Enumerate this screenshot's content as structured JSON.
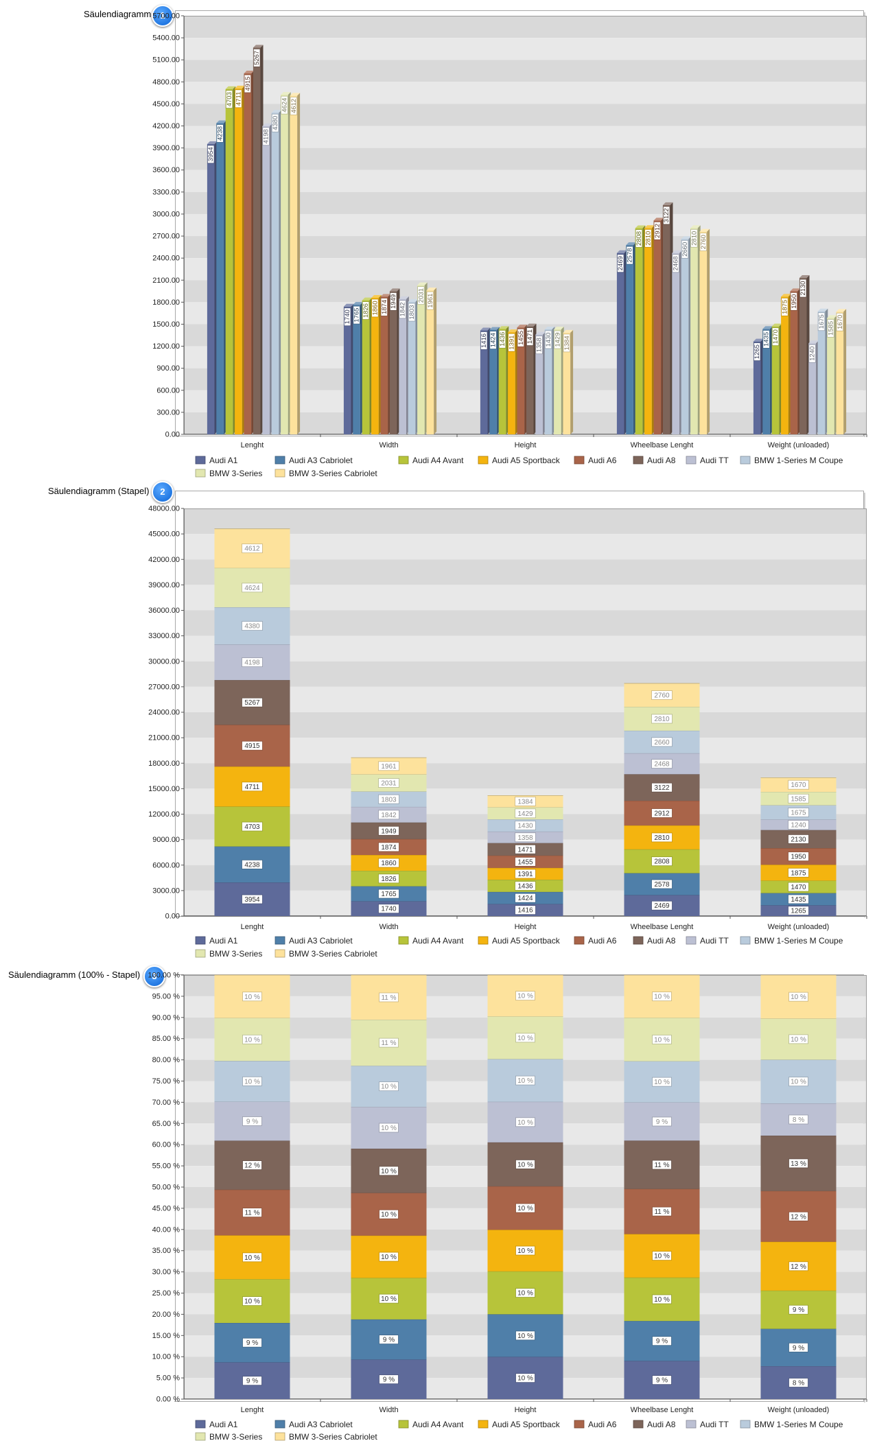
{
  "annotations": [
    {
      "label": "Säulendiagramm",
      "badge": "1"
    },
    {
      "label": "Säulendiagramm (Stapel)",
      "badge": "2"
    },
    {
      "label": "Säulendiagramm (100% - Stapel)",
      "badge": "3"
    }
  ],
  "colors": [
    "#5e6a9a",
    "#4f7fa9",
    "#b7c43a",
    "#f4b40f",
    "#a96449",
    "#7d655a",
    "#bcc0d3",
    "#b9cbdc",
    "#e2e7b0",
    "#fde29c"
  ],
  "chart_data": [
    {
      "type": "bar",
      "title": "Säulendiagramm",
      "categories": [
        "Lenght",
        "Width",
        "Height",
        "Wheelbase Lenght",
        "Weight (unloaded)"
      ],
      "ylim": [
        0,
        5700
      ],
      "ytick_step": 300,
      "ytick_labels": [
        "0.00",
        "300.00",
        "600.00",
        "900.00",
        "1200.00",
        "1500.00",
        "1800.00",
        "2100.00",
        "2400.00",
        "2700.00",
        "3000.00",
        "3300.00",
        "3600.00",
        "3900.00",
        "4200.00",
        "4500.00",
        "4800.00",
        "5100.00",
        "5400.00",
        "5700.00"
      ],
      "series": [
        {
          "name": "Audi A1",
          "values": [
            3954,
            1740,
            1416,
            2469,
            1265
          ]
        },
        {
          "name": "Audi A3 Cabriolet",
          "values": [
            4238,
            1765,
            1424,
            2578,
            1435
          ]
        },
        {
          "name": "Audi A4 Avant",
          "values": [
            4703,
            1826,
            1436,
            2808,
            1470
          ]
        },
        {
          "name": "Audi A5 Sportback",
          "values": [
            4711,
            1860,
            1391,
            2810,
            1875
          ]
        },
        {
          "name": "Audi A6",
          "values": [
            4915,
            1874,
            1455,
            2912,
            1950
          ]
        },
        {
          "name": "Audi A8",
          "values": [
            5267,
            1949,
            1471,
            3122,
            2130
          ]
        },
        {
          "name": "Audi TT",
          "values": [
            4198,
            1842,
            1358,
            2468,
            1240
          ]
        },
        {
          "name": "BMW 1-Series M Coupe",
          "values": [
            4380,
            1803,
            1430,
            2660,
            1675
          ]
        },
        {
          "name": "BMW 3-Series",
          "values": [
            4624,
            2031,
            1429,
            2810,
            1585
          ]
        },
        {
          "name": "BMW 3-Series Cabriolet",
          "values": [
            4612,
            1961,
            1384,
            2760,
            1670
          ]
        }
      ]
    },
    {
      "type": "bar",
      "title": "Säulendiagramm (Stapel)",
      "categories": [
        "Lenght",
        "Width",
        "Height",
        "Wheelbase Lenght",
        "Weight (unloaded)"
      ],
      "ylim": [
        0,
        48000
      ],
      "ytick_step": 3000,
      "ytick_labels": [
        "0.00",
        "3000.00",
        "6000.00",
        "9000.00",
        "12000.00",
        "15000.00",
        "18000.00",
        "21000.00",
        "24000.00",
        "27000.00",
        "30000.00",
        "33000.00",
        "36000.00",
        "39000.00",
        "42000.00",
        "45000.00",
        "48000.00"
      ],
      "series": [
        {
          "name": "Audi A1",
          "values": [
            3954,
            1740,
            1416,
            2469,
            1265
          ]
        },
        {
          "name": "Audi A3 Cabriolet",
          "values": [
            4238,
            1765,
            1424,
            2578,
            1435
          ]
        },
        {
          "name": "Audi A4 Avant",
          "values": [
            4703,
            1826,
            1436,
            2808,
            1470
          ]
        },
        {
          "name": "Audi A5 Sportback",
          "values": [
            4711,
            1860,
            1391,
            2810,
            1875
          ]
        },
        {
          "name": "Audi A6",
          "values": [
            4915,
            1874,
            1455,
            2912,
            1950
          ]
        },
        {
          "name": "Audi A8",
          "values": [
            5267,
            1949,
            1471,
            3122,
            2130
          ]
        },
        {
          "name": "Audi TT",
          "values": [
            4198,
            1842,
            1358,
            2468,
            1240
          ]
        },
        {
          "name": "BMW 1-Series M Coupe",
          "values": [
            4380,
            1803,
            1430,
            2660,
            1675
          ]
        },
        {
          "name": "BMW 3-Series",
          "values": [
            4624,
            2031,
            1429,
            2810,
            1585
          ]
        },
        {
          "name": "BMW 3-Series Cabriolet",
          "values": [
            4612,
            1961,
            1384,
            2760,
            1670
          ]
        }
      ]
    },
    {
      "type": "bar",
      "title": "Säulendiagramm (100% - Stapel)",
      "categories": [
        "Lenght",
        "Width",
        "Height",
        "Wheelbase Lenght",
        "Weight (unloaded)"
      ],
      "ylim": [
        0,
        100
      ],
      "ytick_step": 5,
      "ytick_labels": [
        "0.00 %",
        "5.00 %",
        "10.00 %",
        "15.00 %",
        "20.00 %",
        "25.00 %",
        "30.00 %",
        "35.00 %",
        "40.00 %",
        "45.00 %",
        "50.00 %",
        "55.00 %",
        "60.00 %",
        "65.00 %",
        "70.00 %",
        "75.00 %",
        "80.00 %",
        "85.00 %",
        "90.00 %",
        "95.00 %",
        "100.00 %"
      ],
      "series": [
        {
          "name": "Audi A1",
          "values": [
            3954,
            1740,
            1416,
            2469,
            1265
          ],
          "labels": [
            "9 %",
            "9 %",
            "10 %",
            "9 %",
            "8 %"
          ]
        },
        {
          "name": "Audi A3 Cabriolet",
          "values": [
            4238,
            1765,
            1424,
            2578,
            1435
          ],
          "labels": [
            "9 %",
            "9 %",
            "10 %",
            "9 %",
            "9 %"
          ]
        },
        {
          "name": "Audi A4 Avant",
          "values": [
            4703,
            1826,
            1436,
            2808,
            1470
          ],
          "labels": [
            "10 %",
            "10 %",
            "10 %",
            "10 %",
            "9 %"
          ]
        },
        {
          "name": "Audi A5 Sportback",
          "values": [
            4711,
            1860,
            1391,
            2810,
            1875
          ],
          "labels": [
            "10 %",
            "10 %",
            "10 %",
            "10 %",
            "12 %"
          ]
        },
        {
          "name": "Audi A6",
          "values": [
            4915,
            1874,
            1455,
            2912,
            1950
          ],
          "labels": [
            "11 %",
            "10 %",
            "10 %",
            "11 %",
            "12 %"
          ]
        },
        {
          "name": "Audi A8",
          "values": [
            5267,
            1949,
            1471,
            3122,
            2130
          ],
          "labels": [
            "12 %",
            "10 %",
            "10 %",
            "11 %",
            "13 %"
          ]
        },
        {
          "name": "Audi TT",
          "values": [
            4198,
            1842,
            1358,
            2468,
            1240
          ],
          "labels": [
            "9 %",
            "10 %",
            "10 %",
            "9 %",
            "8 %"
          ]
        },
        {
          "name": "BMW 1-Series M Coupe",
          "values": [
            4380,
            1803,
            1430,
            2660,
            1675
          ],
          "labels": [
            "10 %",
            "10 %",
            "10 %",
            "10 %",
            "10 %"
          ]
        },
        {
          "name": "BMW 3-Series",
          "values": [
            4624,
            2031,
            1429,
            2810,
            1585
          ],
          "labels": [
            "10 %",
            "11 %",
            "10 %",
            "10 %",
            "10 %"
          ]
        },
        {
          "name": "BMW 3-Series Cabriolet",
          "values": [
            4612,
            1961,
            1384,
            2760,
            1670
          ],
          "labels": [
            "10 %",
            "11 %",
            "10 %",
            "10 %",
            "10 %"
          ]
        }
      ]
    }
  ]
}
